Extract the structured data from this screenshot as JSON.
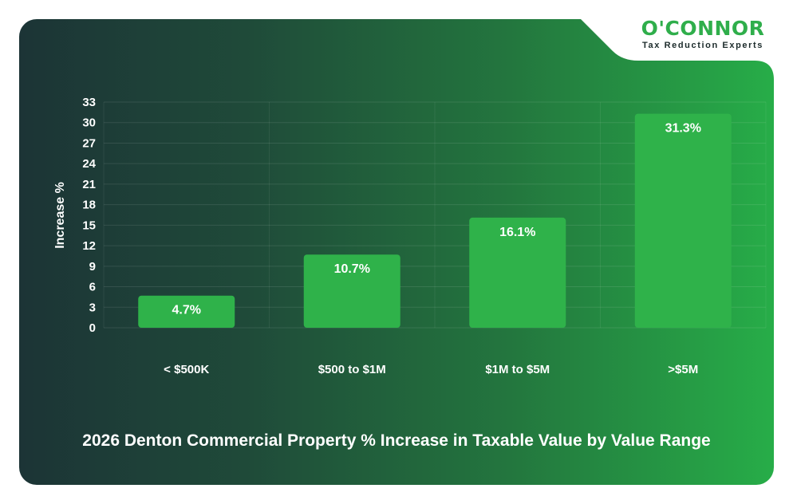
{
  "brand": {
    "name": "O'CONNOR",
    "tagline": "Tax Reduction Experts"
  },
  "chart_data": {
    "type": "bar",
    "title": "2026 Denton Commercial Property % Increase in Taxable Value by Value Range",
    "xlabel": "",
    "ylabel": "Increase %",
    "categories": [
      "< $500K",
      "$500 to $1M",
      "$1M to $5M",
      ">$5M"
    ],
    "values": [
      4.7,
      10.7,
      16.1,
      31.3
    ],
    "data_labels": [
      "4.7%",
      "10.7%",
      "16.1%",
      "31.3%"
    ],
    "yticks": [
      0,
      3,
      6,
      9,
      12,
      15,
      18,
      21,
      24,
      27,
      30,
      33
    ],
    "ylim": [
      0,
      33
    ],
    "grid": true,
    "legend": "none",
    "colors": {
      "bar": "#2fb24a",
      "text": "#ffffff"
    }
  }
}
